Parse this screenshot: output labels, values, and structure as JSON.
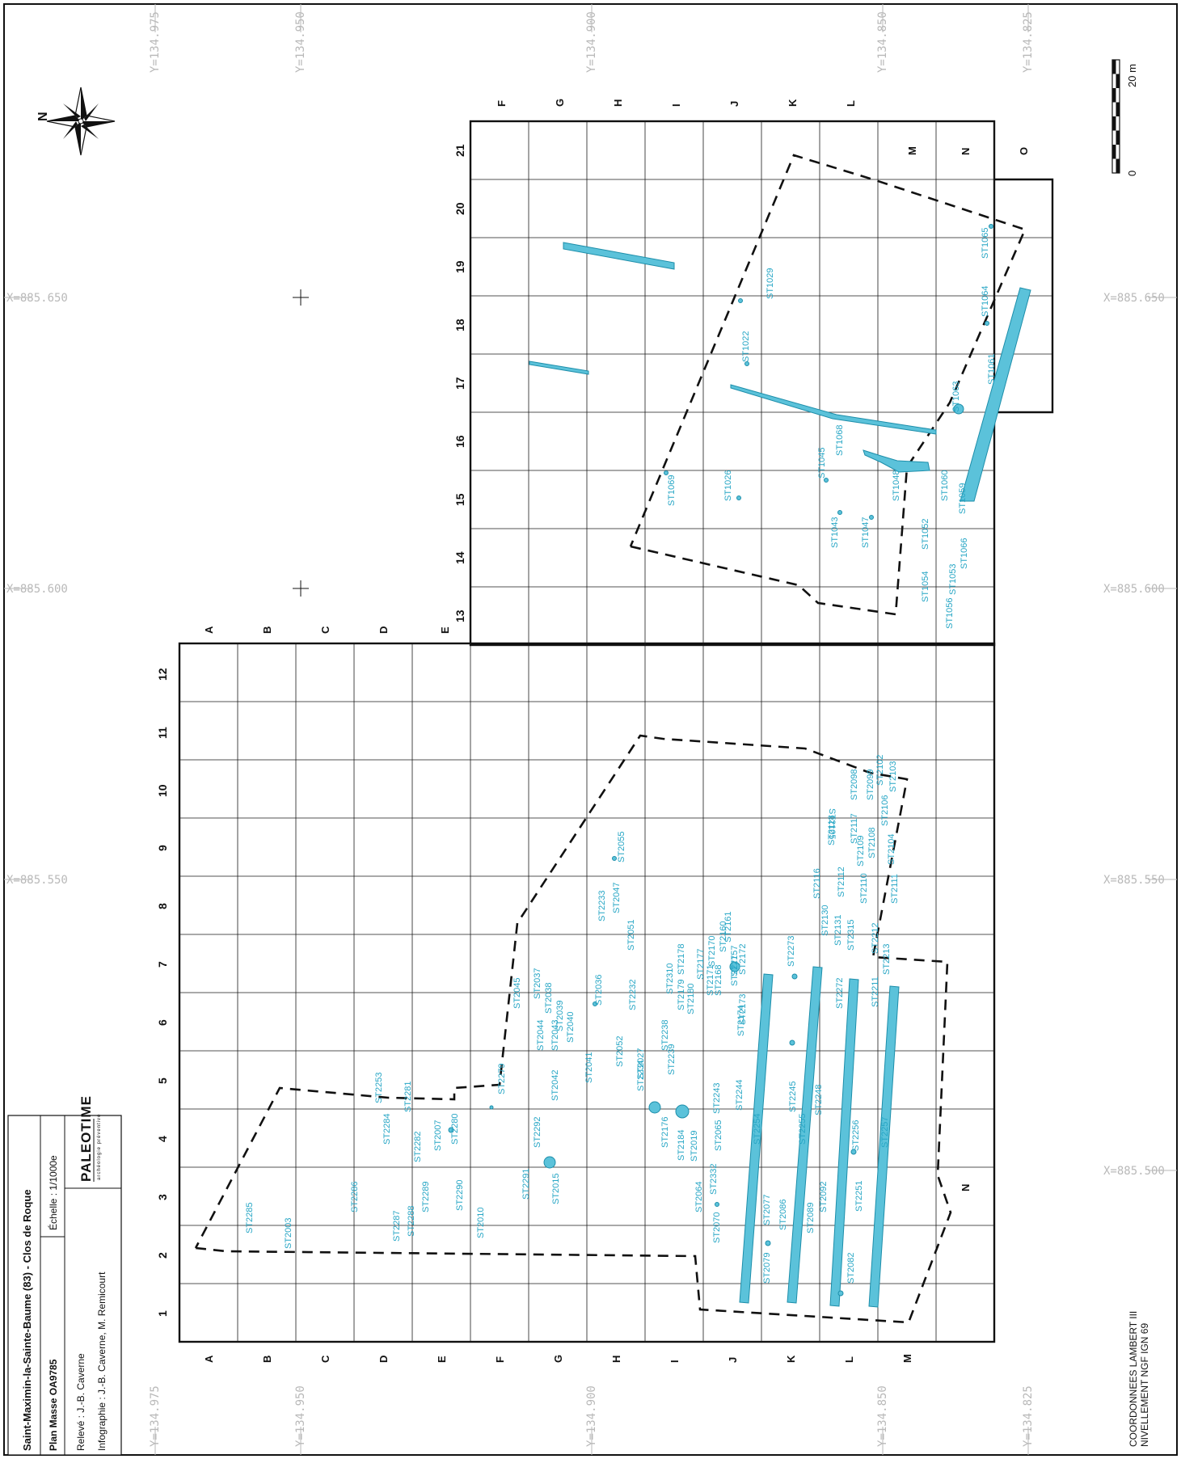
{
  "cartouche": {
    "site": "Saint-Maximin-la-Sainte-Baume (83) - Clos de Roque",
    "plan": "Plan Masse OA9785",
    "scale": "Échelle : 1/1000e",
    "releve": "Relevé : J.-B. Caverne",
    "infographie": "Infographie : J.-B. Caverne, M. Remicourt",
    "logo_main": "PALEOTIME",
    "logo_sub": "archéologie préventive"
  },
  "north": "N",
  "scalebar": {
    "top": "20 m",
    "bottom": "0"
  },
  "coordinates_note": [
    "COORDONNEES LAMBERT III",
    "NIVELLEMENT NGF IGN 69"
  ],
  "coords": {
    "x": [
      "X=885.650",
      "X=885.600",
      "X=885.550",
      "X=885.500"
    ],
    "y": [
      "Y=134.975",
      "Y=134.950",
      "Y=134.900",
      "Y=134.850",
      "Y=134.825"
    ]
  },
  "south_grid": {
    "cols": [
      "1",
      "2",
      "3",
      "4",
      "5",
      "6",
      "7",
      "8",
      "9",
      "10",
      "11",
      "12"
    ],
    "rows": [
      "A",
      "B",
      "C",
      "D",
      "E",
      "F",
      "G",
      "H",
      "I",
      "J",
      "K",
      "L",
      "M",
      "N"
    ]
  },
  "north_grid": {
    "cols": [
      "13",
      "14",
      "15",
      "16",
      "17",
      "18",
      "19",
      "20",
      "21"
    ],
    "rows": [
      "E",
      "F",
      "G",
      "H",
      "I",
      "J",
      "K",
      "L",
      "M",
      "N",
      "O"
    ]
  },
  "features_north": [
    "ST1065",
    "ST1064",
    "ST1061",
    "ST1063",
    "ST1060",
    "ST1059",
    "ST1066",
    "ST1053",
    "ST1056",
    "ST1054",
    "ST1052",
    "ST1048",
    "ST1047",
    "ST1043",
    "ST1045",
    "ST1068",
    "ST1026",
    "ST1069",
    "ST1022",
    "ST1029"
  ],
  "features_south": [
    "ST2285",
    "ST2003",
    "ST2286",
    "ST2287",
    "ST2288",
    "ST2289",
    "ST2284",
    "ST2253",
    "ST2282",
    "ST2281",
    "ST2007",
    "ST2280",
    "ST2290",
    "ST2010",
    "ST2279",
    "ST2291",
    "ST2015",
    "ST2292",
    "ST2042",
    "ST2043",
    "ST2044",
    "ST2045",
    "ST2037",
    "ST2038",
    "ST2039",
    "ST2040",
    "ST2041",
    "ST2036",
    "ST2233",
    "ST2047",
    "ST2051",
    "ST2055",
    "ST2052",
    "ST2027",
    "ST2232",
    "ST2234",
    "ST2176",
    "ST2184",
    "ST2238",
    "ST2239",
    "ST2310",
    "ST2179",
    "ST2180",
    "ST2178",
    "ST2177",
    "ST2170",
    "ST2171",
    "ST2168",
    "ST2160",
    "ST2161",
    "ST2157",
    "ST2172",
    "ST2174",
    "ST2173",
    "ST2277",
    "ST2019",
    "ST2064",
    "ST2065",
    "ST2070",
    "ST2243",
    "ST2244",
    "ST2254",
    "ST2332",
    "ST2077",
    "ST2079",
    "ST2086",
    "ST2245",
    "ST2255",
    "ST2248",
    "ST2089",
    "ST2092",
    "ST2256",
    "ST2251",
    "ST2082",
    "ST2257",
    "ST2273",
    "ST2272",
    "ST2130",
    "ST2131",
    "ST2315",
    "ST2211",
    "ST2213",
    "ST2212",
    "ST2116",
    "ST2112",
    "ST2110",
    "ST2118",
    "ST2117",
    "ST2109",
    "ST2108",
    "ST2104",
    "ST2111",
    "ST2105",
    "ST2106",
    "ST2099",
    "ST2098",
    "ST2102",
    "ST2103"
  ]
}
